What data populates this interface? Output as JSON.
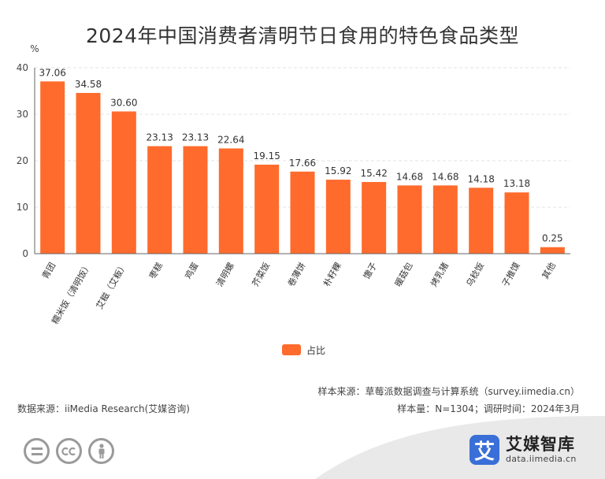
{
  "title": "2024年中国消费者清明节日食用的特色食品类型",
  "colors": {
    "bar": "#ff6b2c",
    "grid": "#e3e3e3",
    "axis": "#666666",
    "footer_bg": "#e9e9e9"
  },
  "chart_data": {
    "type": "bar",
    "title": "2024年中国消费者清明节日食用的特色食品类型",
    "ylabel": "%",
    "ylim": [
      0,
      40
    ],
    "yticks": [
      0,
      10,
      20,
      30,
      40
    ],
    "grid": true,
    "legend_position": "bottom-center",
    "categories": [
      "青团",
      "糯米饭（清明饭）",
      "艾糍（艾粄）",
      "枣糕",
      "鸡蛋",
      "清明螺",
      "芥菜饭",
      "卷薄饼",
      "朴籽粿",
      "馓子",
      "暖菇包",
      "烤乳猪",
      "乌稔饭",
      "子推馍",
      "其他"
    ],
    "series": [
      {
        "name": "占比",
        "values": [
          37.06,
          34.58,
          30.6,
          23.13,
          23.13,
          22.64,
          19.15,
          17.66,
          15.92,
          15.42,
          14.68,
          14.68,
          14.18,
          13.18,
          0.25
        ]
      }
    ],
    "value_labels": [
      "37.06",
      "34.58",
      "30.60",
      "23.13",
      "23.13",
      "22.64",
      "19.15",
      "17.66",
      "15.92",
      "15.42",
      "14.68",
      "14.68",
      "14.18",
      "13.18",
      "0.25"
    ]
  },
  "notes": {
    "source_data": "数据来源：iiMedia Research(艾媒咨询)",
    "sample_source": "样本来源：草莓派数据调查与计算系统（survey.iimedia.cn）",
    "sample_size": "样本量：N=1304；调研时间：2024年3月"
  },
  "icons": [
    "equal-icon",
    "cc-icon",
    "person-icon",
    "brand-logo-icon"
  ],
  "brand": {
    "mark": "艾",
    "name": "艾媒智库",
    "url": "data.iimedia.cn"
  }
}
